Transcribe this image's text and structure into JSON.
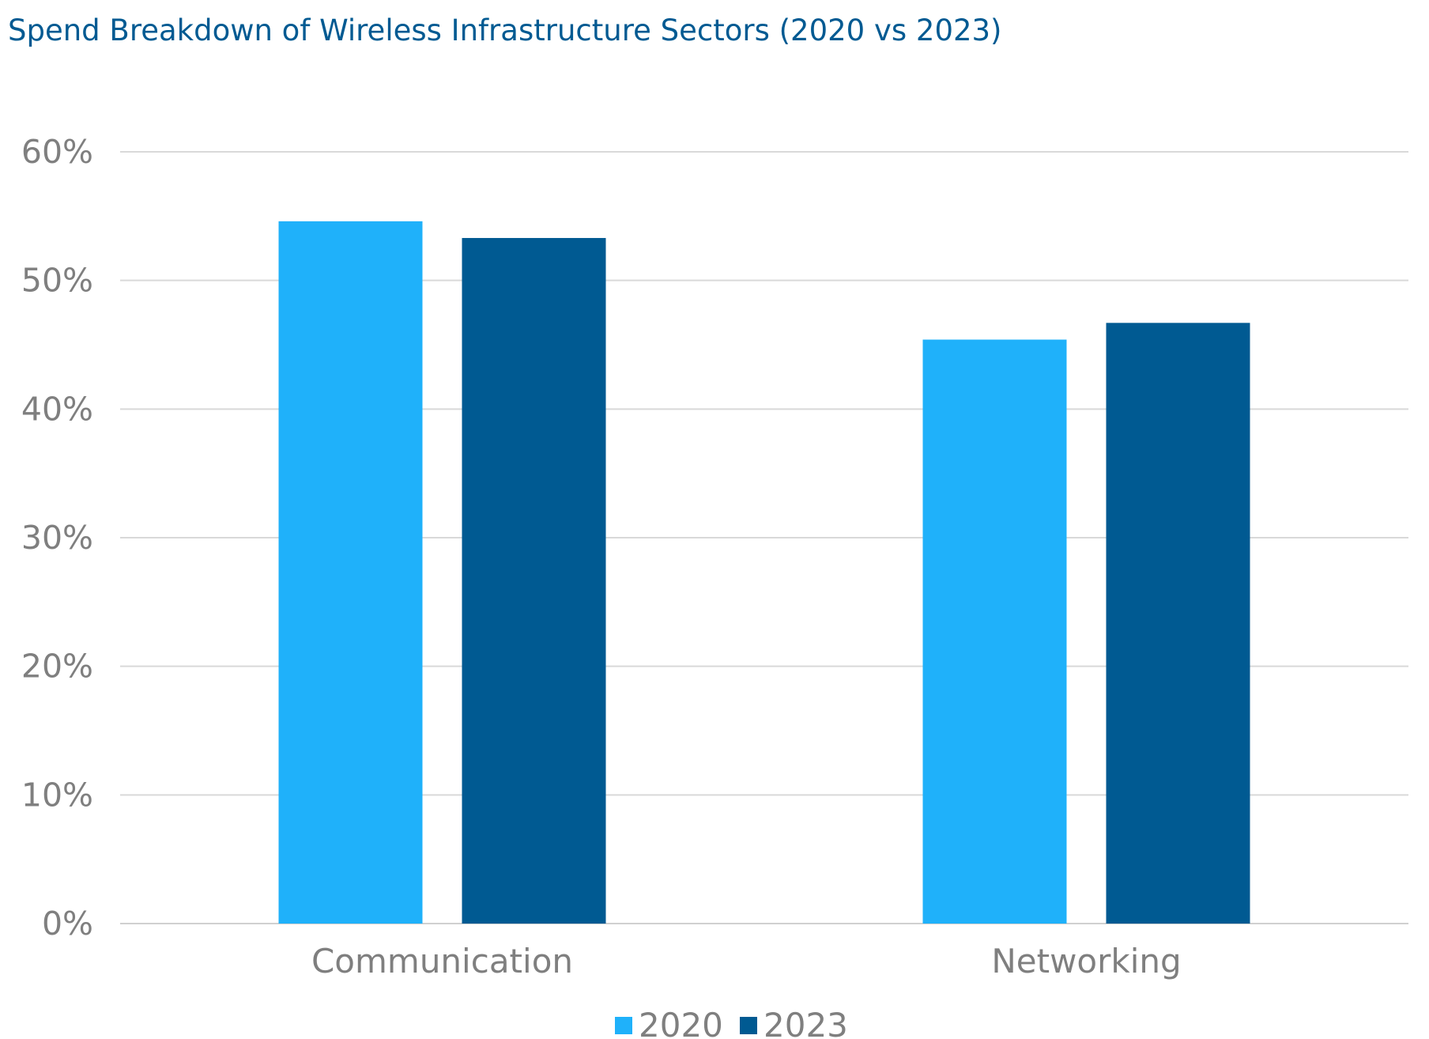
{
  "chart_data": {
    "type": "bar",
    "title": "Spend Breakdown of Wireless Infrastructure Sectors (2020 vs 2023)",
    "categories": [
      "Communication",
      "Networking"
    ],
    "series": [
      {
        "name": "2020",
        "values": [
          54.6,
          45.4
        ],
        "color": "#1fb1fa"
      },
      {
        "name": "2023",
        "values": [
          53.3,
          46.7
        ],
        "color": "#005a92"
      }
    ],
    "ylim": [
      0,
      60
    ],
    "yticks": [
      "0%",
      "10%",
      "20%",
      "30%",
      "40%",
      "50%",
      "60%"
    ],
    "grid": true,
    "legend_position": "bottom-center"
  }
}
